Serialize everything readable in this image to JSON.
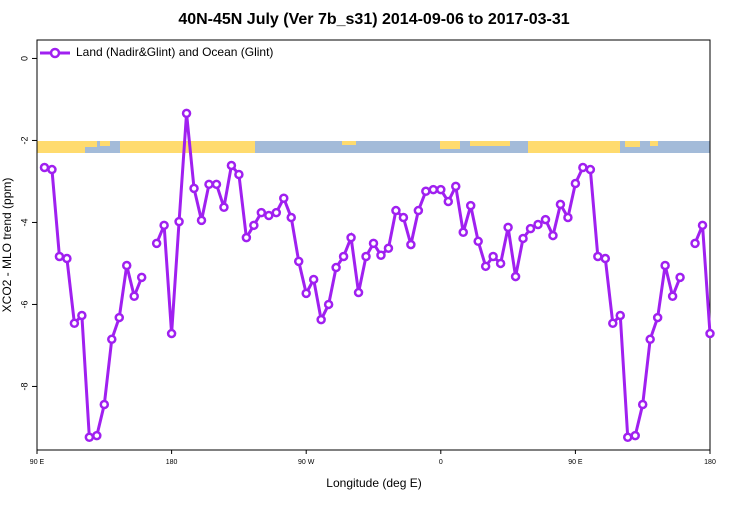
{
  "chart_data": {
    "type": "line",
    "title": "40N-45N July (Ver 7b_s31)   2014-09-06 to 2017-03-31",
    "xlabel": "Longitude (deg E)",
    "ylabel": "XCO2 - MLO trend (ppm)",
    "x": [
      95,
      100,
      105,
      110,
      115,
      120,
      125,
      130,
      135,
      140,
      145,
      150,
      155,
      160,
      165,
      170,
      175,
      180,
      185,
      190,
      195,
      200,
      205,
      210,
      215,
      220,
      225,
      230,
      235,
      240,
      245,
      250,
      255,
      260,
      265,
      270,
      275,
      280,
      285,
      290,
      295,
      300,
      305,
      310,
      315,
      320,
      325,
      330,
      335,
      340,
      345,
      350,
      355,
      360,
      365,
      370,
      375,
      380,
      385,
      390,
      395,
      400,
      405,
      410,
      415,
      420,
      425,
      430,
      435,
      440,
      445,
      450,
      455,
      460,
      465,
      470,
      475,
      480,
      485,
      490,
      495,
      500,
      505,
      510,
      515,
      520,
      525,
      530,
      535,
      540
    ],
    "series": [
      {
        "name": "Land (Nadir&Glint) and Ocean (Glint)",
        "color": "#a020f0",
        "values": [
          -2.66,
          -2.71,
          -4.83,
          -4.88,
          -6.46,
          -6.27,
          -9.24,
          -9.2,
          -8.44,
          -6.85,
          -6.32,
          -5.05,
          -5.8,
          -5.34,
          null,
          -4.51,
          -4.07,
          -6.71,
          -3.98,
          -1.34,
          -3.17,
          -3.95,
          -3.07,
          -3.07,
          -3.63,
          -2.61,
          -2.83,
          -4.37,
          -4.07,
          -3.76,
          -3.83,
          -3.76,
          -3.41,
          -3.88,
          -4.95,
          -5.73,
          -5.39,
          -6.37,
          -6.0,
          -5.1,
          -4.83,
          -4.37,
          -5.71,
          -4.83,
          -4.51,
          -4.8,
          -4.63,
          -3.71,
          -3.88,
          -4.54,
          -3.71,
          -3.24,
          -3.2,
          -3.2,
          -3.49,
          -3.12,
          -4.24,
          -3.59,
          -4.46,
          -5.07,
          -4.83,
          -5.0,
          -4.12,
          -5.32,
          -4.39,
          -4.15,
          -4.05,
          -3.93,
          -4.32,
          -3.56,
          -3.88,
          -3.05,
          -2.66,
          -2.71,
          -4.83,
          -4.88,
          -6.46,
          -6.27,
          -9.24,
          -9.2,
          -8.44,
          -6.85,
          -6.32,
          -5.05,
          -5.8,
          -5.34,
          null,
          -4.51,
          -4.07,
          -6.71
        ]
      }
    ],
    "xlim": [
      90,
      540
    ],
    "xticks": [
      {
        "value": 90,
        "label": "90 E"
      },
      180,
      {
        "value": 270,
        "label": "90 W"
      },
      {
        "value": 360,
        "label": "0"
      },
      {
        "value": 450,
        "label": "90 E"
      },
      {
        "value": 540,
        "label": "180"
      }
    ],
    "ylim": [
      -9.55,
      0.45
    ],
    "yticks": [
      0,
      -2,
      -4,
      -6,
      -8
    ],
    "legend": "top-left"
  }
}
